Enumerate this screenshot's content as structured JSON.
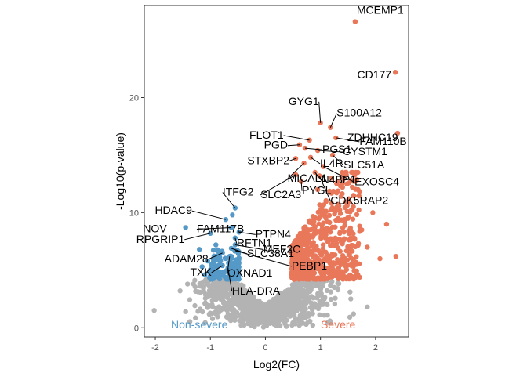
{
  "chart_data": {
    "type": "scatter",
    "title": "",
    "xlabel": "Log2(FC)",
    "ylabel": "-Log10(p-value)",
    "xlim": [
      -2.2,
      2.6
    ],
    "ylim": [
      -0.8,
      28.0
    ],
    "x_ticks": [
      {
        "value": -2,
        "label": "-2"
      },
      {
        "value": -1,
        "label": "-1"
      },
      {
        "value": 0,
        "label": "0"
      },
      {
        "value": 1,
        "label": "1"
      },
      {
        "value": 2,
        "label": "2"
      }
    ],
    "y_ticks": [
      {
        "value": 0,
        "label": "0"
      },
      {
        "value": 10,
        "label": "10"
      },
      {
        "value": 20,
        "label": "20"
      }
    ],
    "grid": false,
    "colors": {
      "severe": "#e9785a",
      "non_severe": "#5499c7",
      "not_significant": "#b3b3b3",
      "panel_border": "#333333"
    },
    "group_labels": {
      "non_severe": "Non-severe",
      "severe": "Severe"
    },
    "labeled_points": [
      {
        "gene": "MCEMP1",
        "x": 1.63,
        "y": 26.6,
        "group": "severe"
      },
      {
        "gene": "CD177",
        "x": 2.36,
        "y": 22.2,
        "group": "severe"
      },
      {
        "gene": "GYG1",
        "x": 1.0,
        "y": 17.8,
        "group": "severe"
      },
      {
        "gene": "S100A12",
        "x": 1.18,
        "y": 17.4,
        "group": "severe"
      },
      {
        "gene": "FAM110B",
        "x": 1.28,
        "y": 16.5,
        "group": "severe"
      },
      {
        "gene": "ZDHHC19",
        "x": 2.4,
        "y": 16.9,
        "group": "severe"
      },
      {
        "gene": "FLOT1",
        "x": 0.8,
        "y": 16.3,
        "group": "severe"
      },
      {
        "gene": "PGS1",
        "x": 0.72,
        "y": 15.6,
        "group": "severe"
      },
      {
        "gene": "CYSTM1",
        "x": 0.95,
        "y": 15.4,
        "group": "severe"
      },
      {
        "gene": "PGD",
        "x": 0.62,
        "y": 15.9,
        "group": "severe"
      },
      {
        "gene": "IL4R",
        "x": 0.82,
        "y": 14.8,
        "group": "severe"
      },
      {
        "gene": "SLC51A",
        "x": 1.22,
        "y": 15.0,
        "group": "severe"
      },
      {
        "gene": "STXBP2",
        "x": 0.55,
        "y": 14.7,
        "group": "severe"
      },
      {
        "gene": "EXOSC4",
        "x": 1.05,
        "y": 14.0,
        "group": "severe"
      },
      {
        "gene": "MICAL1",
        "x": 0.7,
        "y": 14.3,
        "group": "severe"
      },
      {
        "gene": "N4BP1",
        "x": 0.9,
        "y": 13.5,
        "group": "severe"
      },
      {
        "gene": "SLC2A3",
        "x": 0.55,
        "y": 13.3,
        "group": "severe"
      },
      {
        "gene": "CDK5RAP2",
        "x": 0.98,
        "y": 13.2,
        "group": "severe"
      },
      {
        "gene": "PYGL",
        "x": 0.65,
        "y": 12.7,
        "group": "severe"
      },
      {
        "gene": "ITFG2",
        "x": -0.55,
        "y": 10.4,
        "group": "non_severe"
      },
      {
        "gene": "HDAC9",
        "x": -0.72,
        "y": 9.4,
        "group": "non_severe"
      },
      {
        "gene": "PTPN4",
        "x": -0.48,
        "y": 8.3,
        "group": "non_severe"
      },
      {
        "gene": "NOV",
        "x": -1.45,
        "y": 8.7,
        "group": "non_severe"
      },
      {
        "gene": "FAM117B",
        "x": -0.62,
        "y": 8.7,
        "group": "non_severe"
      },
      {
        "gene": "RFTN1",
        "x": -0.55,
        "y": 7.8,
        "group": "non_severe"
      },
      {
        "gene": "MEF2C",
        "x": -0.55,
        "y": 7.2,
        "group": "non_severe"
      },
      {
        "gene": "RPGRIP1",
        "x": -1.0,
        "y": 8.2,
        "group": "non_severe"
      },
      {
        "gene": "SLC38A1",
        "x": -0.62,
        "y": 6.9,
        "group": "non_severe"
      },
      {
        "gene": "ADAM28",
        "x": -0.78,
        "y": 6.5,
        "group": "non_severe"
      },
      {
        "gene": "OXNAD1",
        "x": -0.65,
        "y": 6.2,
        "group": "non_severe"
      },
      {
        "gene": "PEBP1",
        "x": -0.55,
        "y": 6.7,
        "group": "non_severe"
      },
      {
        "gene": "TXK",
        "x": -0.78,
        "y": 5.4,
        "group": "non_severe"
      },
      {
        "gene": "HLA-DRA",
        "x": -0.68,
        "y": 5.2,
        "group": "non_severe"
      }
    ],
    "other_points": [
      {
        "x": 2.37,
        "y": 6.2,
        "group": "severe"
      },
      {
        "x": 2.08,
        "y": 6.0,
        "group": "severe"
      },
      {
        "x": 2.2,
        "y": 9.0,
        "group": "severe"
      },
      {
        "x": 1.95,
        "y": 10.0,
        "group": "severe"
      },
      {
        "x": 1.6,
        "y": 11.5,
        "group": "severe"
      },
      {
        "x": 1.4,
        "y": 12.2,
        "group": "severe"
      },
      {
        "x": 1.75,
        "y": 8.5,
        "group": "severe"
      },
      {
        "x": 1.55,
        "y": 7.8,
        "group": "severe"
      },
      {
        "x": 1.5,
        "y": 9.5,
        "group": "severe"
      },
      {
        "x": 1.3,
        "y": 10.5,
        "group": "severe"
      },
      {
        "x": 1.85,
        "y": 7.0,
        "group": "severe"
      },
      {
        "x": 1.2,
        "y": 13.0,
        "group": "severe"
      },
      {
        "x": 1.45,
        "y": 6.0,
        "group": "severe"
      },
      {
        "x": 1.65,
        "y": 5.5,
        "group": "severe"
      },
      {
        "x": 1.1,
        "y": 11.0,
        "group": "severe"
      },
      {
        "x": 0.95,
        "y": 12.0,
        "group": "severe"
      },
      {
        "x": 1.35,
        "y": 8.2,
        "group": "severe"
      },
      {
        "x": -1.15,
        "y": 5.3,
        "group": "non_severe"
      },
      {
        "x": -1.1,
        "y": 4.6,
        "group": "non_severe"
      },
      {
        "x": -1.2,
        "y": 6.8,
        "group": "non_severe"
      },
      {
        "x": -0.95,
        "y": 6.0,
        "group": "non_severe"
      },
      {
        "x": -0.9,
        "y": 7.2,
        "group": "non_severe"
      },
      {
        "x": -1.05,
        "y": 5.8,
        "group": "non_severe"
      },
      {
        "x": -0.6,
        "y": 9.8,
        "group": "non_severe"
      },
      {
        "x": -2.02,
        "y": 1.5,
        "group": "not_significant"
      },
      {
        "x": -1.45,
        "y": 1.4,
        "group": "not_significant"
      },
      {
        "x": -1.55,
        "y": 3.2,
        "group": "not_significant"
      },
      {
        "x": 1.85,
        "y": 1.8,
        "group": "not_significant"
      },
      {
        "x": 1.55,
        "y": 2.5,
        "group": "not_significant"
      },
      {
        "x": 1.6,
        "y": 1.2,
        "group": "not_significant"
      },
      {
        "x": -1.1,
        "y": 2.1,
        "group": "not_significant"
      },
      {
        "x": 1.25,
        "y": 3.5,
        "group": "not_significant"
      }
    ]
  }
}
